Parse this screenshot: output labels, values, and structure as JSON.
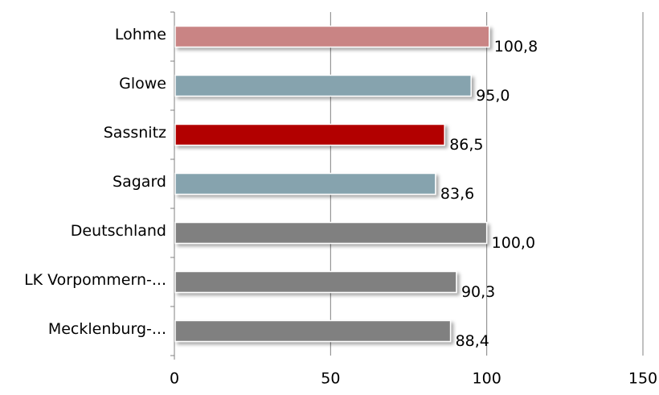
{
  "chart_data": {
    "type": "bar",
    "orientation": "horizontal",
    "categories": [
      "Lohme",
      "Glowe",
      "Sassnitz",
      "Sagard",
      "Deutschland",
      "LK Vorpommern-...",
      "Mecklenburg-..."
    ],
    "values": [
      100.8,
      95.0,
      86.5,
      83.6,
      100.0,
      90.3,
      88.4
    ],
    "value_labels": [
      "100,8",
      "95,0",
      "86,5",
      "83,6",
      "100,0",
      "90,3",
      "88,4"
    ],
    "bar_colors": [
      "#c98484",
      "#86a3ae",
      "#b20000",
      "#86a3ae",
      "#808080",
      "#808080",
      "#808080"
    ],
    "xlim": [
      0,
      150
    ],
    "xticks": [
      0,
      50,
      100,
      150
    ],
    "xtick_labels": [
      "0",
      "50",
      "100",
      "150"
    ],
    "grid": "vertical",
    "legend": "none",
    "title": "",
    "xlabel": "",
    "ylabel": ""
  }
}
